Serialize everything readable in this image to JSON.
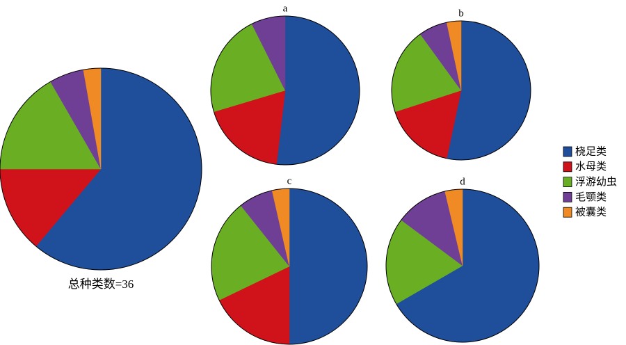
{
  "legend": {
    "categories": [
      "桡足类",
      "水母类",
      "浮游幼虫",
      "毛颚类",
      "被囊类"
    ],
    "colors": [
      "#1f4e9a",
      "#d0121b",
      "#6aaf23",
      "#6f3f96",
      "#f08a24"
    ]
  },
  "chart_data": [
    {
      "type": "pie",
      "annotation": "总种类数=36",
      "values": [
        22,
        5,
        6,
        2,
        1
      ]
    },
    {
      "type": "pie",
      "title": "a",
      "values": [
        14,
        5,
        6,
        2,
        0
      ]
    },
    {
      "type": "pie",
      "title": "b",
      "values": [
        16,
        5,
        6,
        2,
        1
      ]
    },
    {
      "type": "pie",
      "title": "c",
      "values": [
        14,
        5,
        6,
        2,
        1
      ]
    },
    {
      "type": "pie",
      "title": "d",
      "values": [
        18,
        0,
        5,
        3,
        1
      ]
    }
  ]
}
